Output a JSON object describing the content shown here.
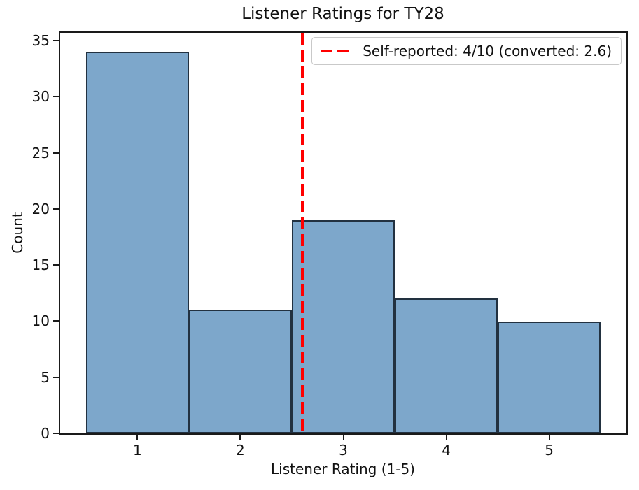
{
  "chart_data": {
    "type": "bar",
    "chart_kind": "histogram",
    "title": "Listener Ratings for TY28",
    "xlabel": "Listener Rating (1-5)",
    "ylabel": "Count",
    "categories": [
      1,
      2,
      3,
      4,
      5
    ],
    "values": [
      34,
      11,
      19,
      12,
      10
    ],
    "bin_width": 1,
    "xlim": [
      0.25,
      5.75
    ],
    "ylim": [
      0,
      35.7
    ],
    "xticks": [
      1,
      2,
      3,
      4,
      5
    ],
    "yticks": [
      0,
      5,
      10,
      15,
      20,
      25,
      30,
      35
    ],
    "grid": false,
    "legend_position": "upper right",
    "colors": {
      "bar_fill": "#7da7cb",
      "bar_edge": "#223140",
      "axis": "#1a1a1a",
      "vline": "#ff0000",
      "legend_border": "#c9c9c9"
    },
    "vline": {
      "x": 2.6,
      "style": "dashed",
      "label": "Self-reported: 4/10 (converted: 2.6)"
    },
    "legend": {
      "entries": [
        {
          "label": "Self-reported: 4/10 (converted: 2.6)",
          "color": "#ff0000",
          "style": "dashed"
        }
      ]
    }
  }
}
